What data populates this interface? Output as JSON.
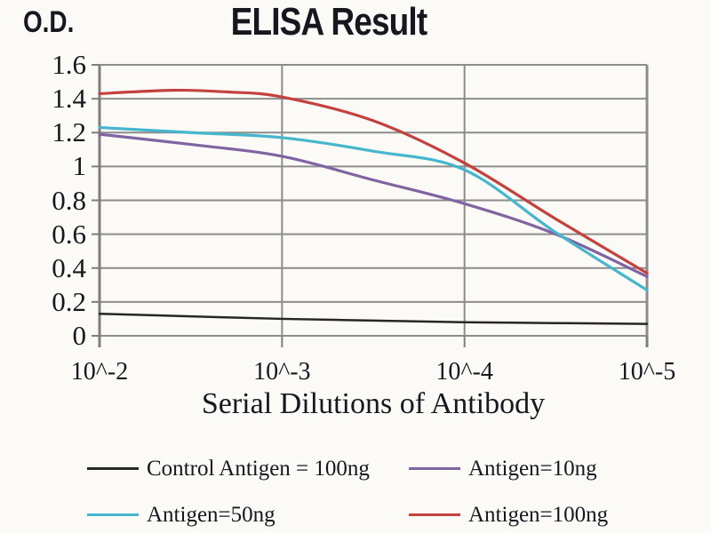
{
  "colors": {
    "background": "#FBFAF7",
    "text": "#17171F",
    "grid": "#8C8C8C",
    "axis": "#7E7E7E",
    "control_black": "#262626",
    "purple": "#8064A2",
    "cyan": "#45B6CE",
    "red": "#C4423E"
  },
  "chart_data": {
    "type": "line",
    "title": "ELISA Result",
    "ylabel": "O.D.",
    "xlabel": "Serial Dilutions of Antibody",
    "x_tick_labels": [
      "10^-2",
      "10^-3",
      "10^-4",
      "10^-5"
    ],
    "y_ticks": [
      0,
      0.2,
      0.4,
      0.6,
      0.8,
      1,
      1.2,
      1.4,
      1.6
    ],
    "y_tick_labels": [
      "0",
      "0.2",
      "0.4",
      "0.6",
      "0.8",
      "1",
      "1.2",
      "1.4",
      "1.6"
    ],
    "ylim": [
      0,
      1.6
    ],
    "grid": true,
    "x_scale": "log-dilution, ticks equally spaced",
    "legend_position": "below chart, 2 columns",
    "series": [
      {
        "name": "Control Antigen = 100ng",
        "color": "#262626",
        "values_at_ticks": [
          0.13,
          0.1,
          0.08,
          0.07
        ],
        "points": [
          [
            0,
            0.13
          ],
          [
            0.5,
            0.115
          ],
          [
            1,
            0.1
          ],
          [
            1.5,
            0.09
          ],
          [
            2,
            0.08
          ],
          [
            2.5,
            0.075
          ],
          [
            3,
            0.07
          ]
        ]
      },
      {
        "name": "Antigen=10ng",
        "color": "#8064A2",
        "values_at_ticks": [
          1.19,
          1.06,
          0.78,
          0.35
        ],
        "points": [
          [
            0,
            1.19
          ],
          [
            0.5,
            1.13
          ],
          [
            1,
            1.06
          ],
          [
            1.5,
            0.92
          ],
          [
            2,
            0.78
          ],
          [
            2.5,
            0.6
          ],
          [
            3,
            0.35
          ]
        ]
      },
      {
        "name": "Antigen=50ng",
        "color": "#45B6CE",
        "values_at_ticks": [
          1.23,
          1.17,
          0.98,
          0.27
        ],
        "points": [
          [
            0,
            1.23
          ],
          [
            0.5,
            1.2
          ],
          [
            1,
            1.17
          ],
          [
            1.5,
            1.09
          ],
          [
            2,
            0.98
          ],
          [
            2.5,
            0.61
          ],
          [
            3,
            0.27
          ]
        ]
      },
      {
        "name": "Antigen=100ng",
        "color": "#C4423E",
        "values_at_ticks": [
          1.43,
          1.41,
          1.02,
          0.37
        ],
        "points": [
          [
            0,
            1.43
          ],
          [
            0.4,
            1.45
          ],
          [
            0.7,
            1.44
          ],
          [
            1,
            1.41
          ],
          [
            1.5,
            1.27
          ],
          [
            2,
            1.02
          ],
          [
            2.5,
            0.69
          ],
          [
            3,
            0.37
          ]
        ]
      }
    ]
  }
}
